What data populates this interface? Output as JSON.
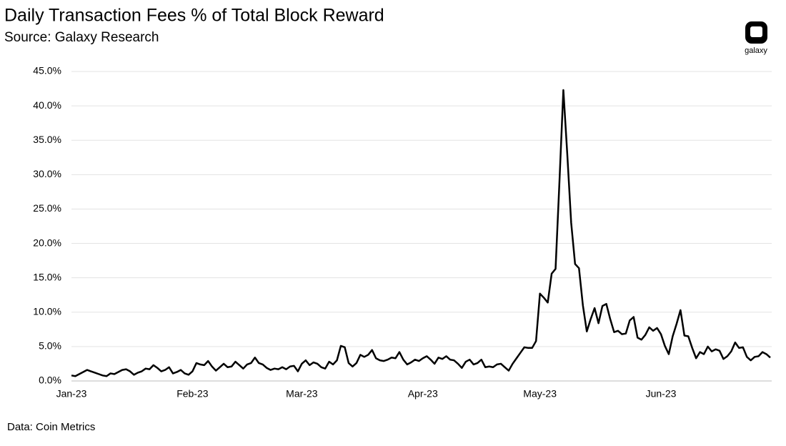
{
  "chart_data": {
    "type": "line",
    "title": "Daily Transaction Fees % of Total Block Reward",
    "subtitle": "Source: Galaxy Research",
    "logo": "galaxy",
    "note": "Data: Coin Metrics",
    "categories": [
      "Jan-23",
      null,
      null,
      null,
      null,
      null,
      null,
      null,
      null,
      null,
      null,
      null,
      null,
      null,
      null,
      null,
      null,
      null,
      null,
      null,
      null,
      null,
      null,
      null,
      null,
      null,
      null,
      null,
      null,
      null,
      null,
      "Feb-23",
      null,
      null,
      null,
      null,
      null,
      null,
      null,
      null,
      null,
      null,
      null,
      null,
      null,
      null,
      null,
      null,
      null,
      null,
      null,
      null,
      null,
      null,
      null,
      null,
      null,
      null,
      null,
      "Mar-23",
      null,
      null,
      null,
      null,
      null,
      null,
      null,
      null,
      null,
      null,
      null,
      null,
      null,
      null,
      null,
      null,
      null,
      null,
      null,
      null,
      null,
      null,
      null,
      null,
      null,
      null,
      null,
      null,
      null,
      null,
      "Apr-23",
      null,
      null,
      null,
      null,
      null,
      null,
      null,
      null,
      null,
      null,
      null,
      null,
      null,
      null,
      null,
      null,
      null,
      null,
      null,
      null,
      null,
      null,
      null,
      null,
      null,
      null,
      null,
      null,
      null,
      "May-23",
      null,
      null,
      null,
      null,
      null,
      null,
      null,
      null,
      null,
      null,
      null,
      null,
      null,
      null,
      null,
      null,
      null,
      null,
      null,
      null,
      null,
      null,
      null,
      null,
      null,
      null,
      null,
      null,
      null,
      null,
      "Jun-23",
      null,
      null,
      null,
      null,
      null,
      null,
      null,
      null,
      null,
      null,
      null,
      null,
      null,
      null,
      null,
      null,
      null,
      null,
      null,
      null,
      null,
      null,
      null,
      null,
      null,
      null,
      null,
      null
    ],
    "values": [
      0.8,
      0.7,
      1.0,
      1.3,
      1.6,
      1.4,
      1.2,
      1.0,
      0.8,
      0.7,
      1.1,
      1.0,
      1.3,
      1.6,
      1.7,
      1.4,
      0.9,
      1.2,
      1.4,
      1.8,
      1.7,
      2.3,
      1.9,
      1.4,
      1.6,
      2.0,
      1.1,
      1.3,
      1.6,
      1.1,
      0.9,
      1.4,
      2.6,
      2.4,
      2.3,
      2.9,
      2.1,
      1.5,
      2.0,
      2.5,
      2.0,
      2.1,
      2.8,
      2.3,
      1.8,
      2.4,
      2.6,
      3.4,
      2.6,
      2.4,
      1.9,
      1.6,
      1.8,
      1.7,
      2.0,
      1.7,
      2.1,
      2.2,
      1.4,
      2.5,
      3.0,
      2.3,
      2.7,
      2.5,
      2.0,
      1.8,
      2.8,
      2.4,
      3.0,
      5.1,
      4.9,
      2.6,
      2.1,
      2.6,
      3.8,
      3.5,
      3.8,
      4.5,
      3.3,
      3.0,
      2.9,
      3.1,
      3.4,
      3.3,
      4.2,
      3.1,
      2.4,
      2.7,
      3.1,
      2.9,
      3.3,
      3.6,
      3.1,
      2.5,
      3.4,
      3.2,
      3.6,
      3.1,
      3.0,
      2.5,
      1.9,
      2.8,
      3.1,
      2.4,
      2.6,
      3.1,
      2.0,
      2.1,
      2.0,
      2.4,
      2.5,
      2.0,
      1.5,
      2.5,
      3.3,
      4.1,
      4.9,
      4.8,
      4.8,
      5.8,
      12.7,
      12.1,
      11.4,
      15.6,
      16.3,
      29.0,
      42.3,
      33.0,
      23.0,
      17.0,
      16.4,
      11.0,
      7.2,
      9.0,
      10.6,
      8.4,
      10.9,
      11.2,
      9.0,
      7.1,
      7.3,
      6.8,
      6.9,
      8.8,
      9.3,
      6.3,
      6.0,
      6.7,
      7.8,
      7.3,
      7.7,
      6.8,
      5.1,
      3.9,
      6.5,
      8.3,
      10.3,
      6.6,
      6.5,
      4.8,
      3.3,
      4.2,
      3.9,
      5.0,
      4.3,
      4.6,
      4.4,
      3.2,
      3.6,
      4.3,
      5.6,
      4.8,
      4.9,
      3.5,
      3.0,
      3.5,
      3.6,
      4.2,
      3.9,
      3.4
    ],
    "color": "#000000",
    "ylim": [
      0,
      45
    ],
    "yticks": [
      {
        "value": 0,
        "label": "0.0%"
      },
      {
        "value": 5,
        "label": "5.0%"
      },
      {
        "value": 10,
        "label": "10.0%"
      },
      {
        "value": 15,
        "label": "15.0%"
      },
      {
        "value": 20,
        "label": "20.0%"
      },
      {
        "value": 25,
        "label": "25.0%"
      },
      {
        "value": 30,
        "label": "30.0%"
      },
      {
        "value": 35,
        "label": "35.0%"
      },
      {
        "value": 40,
        "label": "40.0%"
      },
      {
        "value": 45,
        "label": "45.0%"
      }
    ],
    "grid": true
  }
}
